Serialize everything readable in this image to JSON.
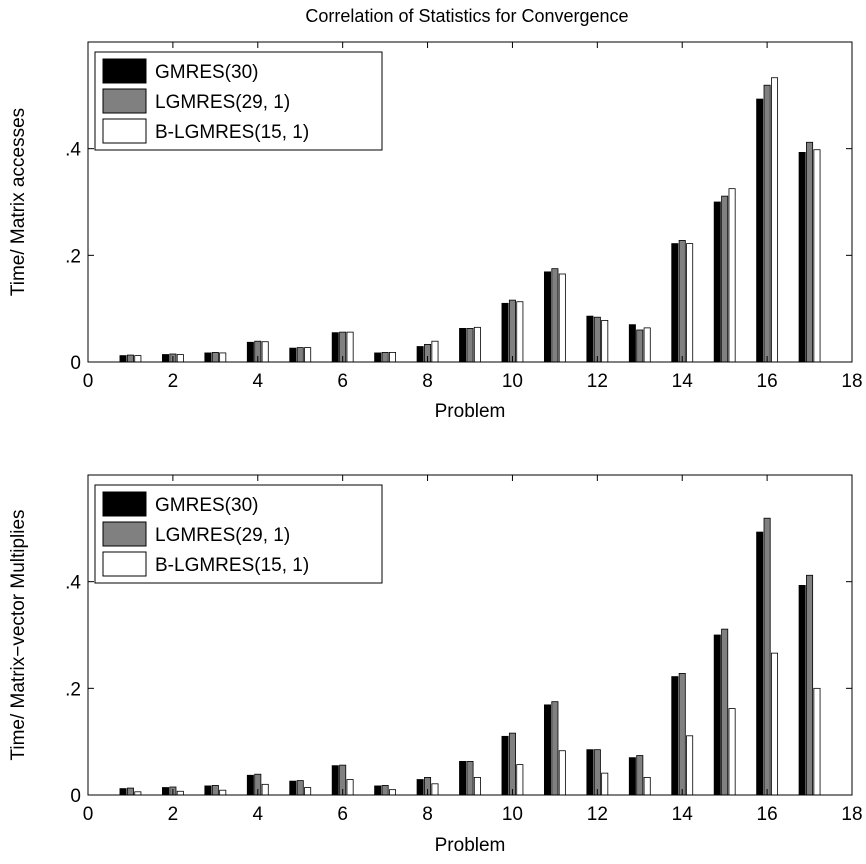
{
  "figure_title": "Correlation of Statistics for Convergence",
  "colors": {
    "GMRES(30)": "#000000",
    "LGMRES(29, 1)": "#808080",
    "B-LGMRES(15, 1)": "#ffffff"
  },
  "chart_data": [
    {
      "type": "bar",
      "title": "Correlation of Statistics for Convergence",
      "xlabel": "Problem",
      "ylabel": "Time/ Matrix accesses",
      "xlim": [
        0,
        18
      ],
      "ylim": [
        0,
        0.6
      ],
      "xticks": [
        0,
        2,
        4,
        6,
        8,
        10,
        12,
        14,
        16,
        18
      ],
      "yticks": [
        0,
        0.2,
        0.4
      ],
      "grid": false,
      "legend_position": "top-left",
      "categories": [
        1,
        2,
        3,
        4,
        5,
        6,
        7,
        8,
        9,
        10,
        11,
        12,
        13,
        14,
        15,
        16,
        17
      ],
      "series": [
        {
          "name": "GMRES(30)",
          "values": [
            0.012,
            0.014,
            0.017,
            0.037,
            0.026,
            0.055,
            0.017,
            0.029,
            0.063,
            0.11,
            0.169,
            0.086,
            0.07,
            0.222,
            0.3,
            0.493,
            0.393
          ]
        },
        {
          "name": "LGMRES(29, 1)",
          "values": [
            0.013,
            0.015,
            0.018,
            0.039,
            0.027,
            0.056,
            0.018,
            0.033,
            0.063,
            0.116,
            0.175,
            0.084,
            0.06,
            0.228,
            0.311,
            0.519,
            0.412
          ]
        },
        {
          "name": "B-LGMRES(15, 1)",
          "values": [
            0.012,
            0.014,
            0.017,
            0.038,
            0.027,
            0.056,
            0.018,
            0.039,
            0.065,
            0.113,
            0.165,
            0.078,
            0.064,
            0.222,
            0.325,
            0.533,
            0.398
          ]
        }
      ]
    },
    {
      "type": "bar",
      "title": "",
      "xlabel": "Problem",
      "ylabel": "Time/ Matrix−vector Multiplies",
      "xlim": [
        0,
        18
      ],
      "ylim": [
        0,
        0.6
      ],
      "xticks": [
        0,
        2,
        4,
        6,
        8,
        10,
        12,
        14,
        16,
        18
      ],
      "yticks": [
        0,
        0.2,
        0.4
      ],
      "grid": false,
      "legend_position": "top-left",
      "categories": [
        1,
        2,
        3,
        4,
        5,
        6,
        7,
        8,
        9,
        10,
        11,
        12,
        13,
        14,
        15,
        16,
        17
      ],
      "series": [
        {
          "name": "GMRES(30)",
          "values": [
            0.012,
            0.014,
            0.017,
            0.037,
            0.026,
            0.055,
            0.017,
            0.029,
            0.063,
            0.11,
            0.169,
            0.085,
            0.07,
            0.222,
            0.3,
            0.493,
            0.393
          ]
        },
        {
          "name": "LGMRES(29, 1)",
          "values": [
            0.013,
            0.015,
            0.018,
            0.039,
            0.027,
            0.056,
            0.018,
            0.033,
            0.063,
            0.116,
            0.175,
            0.085,
            0.074,
            0.228,
            0.311,
            0.519,
            0.412
          ]
        },
        {
          "name": "B-LGMRES(15, 1)",
          "values": [
            0.006,
            0.007,
            0.009,
            0.02,
            0.014,
            0.029,
            0.01,
            0.021,
            0.033,
            0.057,
            0.083,
            0.041,
            0.033,
            0.111,
            0.162,
            0.266,
            0.2
          ]
        }
      ]
    }
  ]
}
